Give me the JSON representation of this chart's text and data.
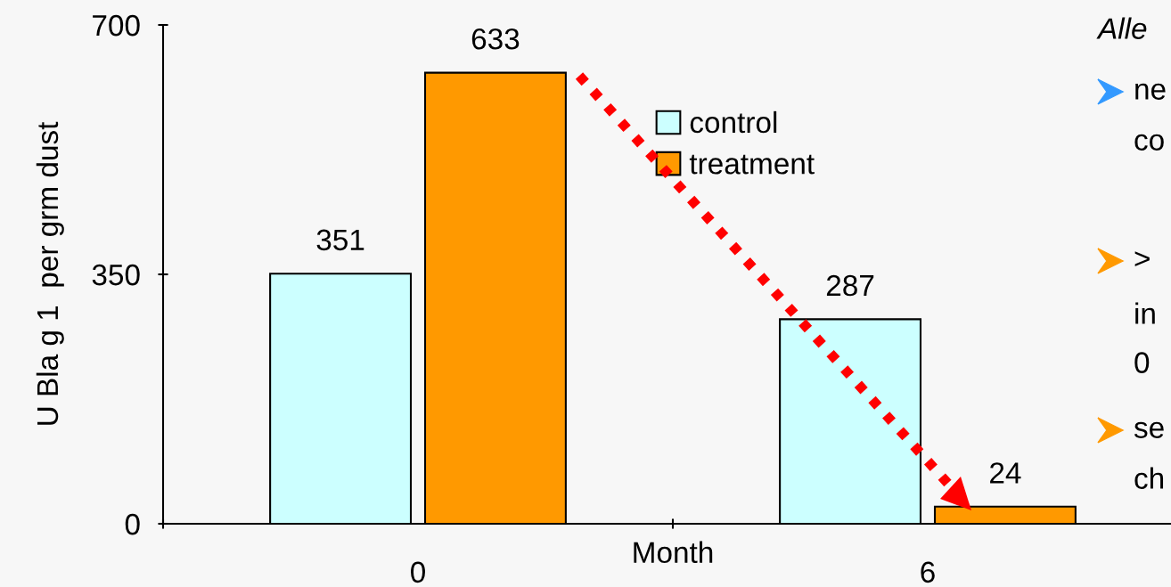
{
  "chart_data": {
    "type": "bar",
    "ylabel": "U Bla g 1  per grm dust",
    "xlabel": "Month",
    "categories": [
      "0",
      "6"
    ],
    "series": [
      {
        "name": "control",
        "color": "#ccffff",
        "values": [
          351,
          287
        ]
      },
      {
        "name": "treatment",
        "color": "#ff9900",
        "values": [
          633,
          24
        ]
      }
    ],
    "ylim": [
      0,
      700
    ],
    "yticks": [
      0,
      350,
      700
    ],
    "data_labels": true,
    "legend": "top",
    "grid": false,
    "annotations": [
      "Alle",
      "ne",
      "co",
      ">",
      "in",
      "0",
      "se",
      "ch"
    ]
  }
}
